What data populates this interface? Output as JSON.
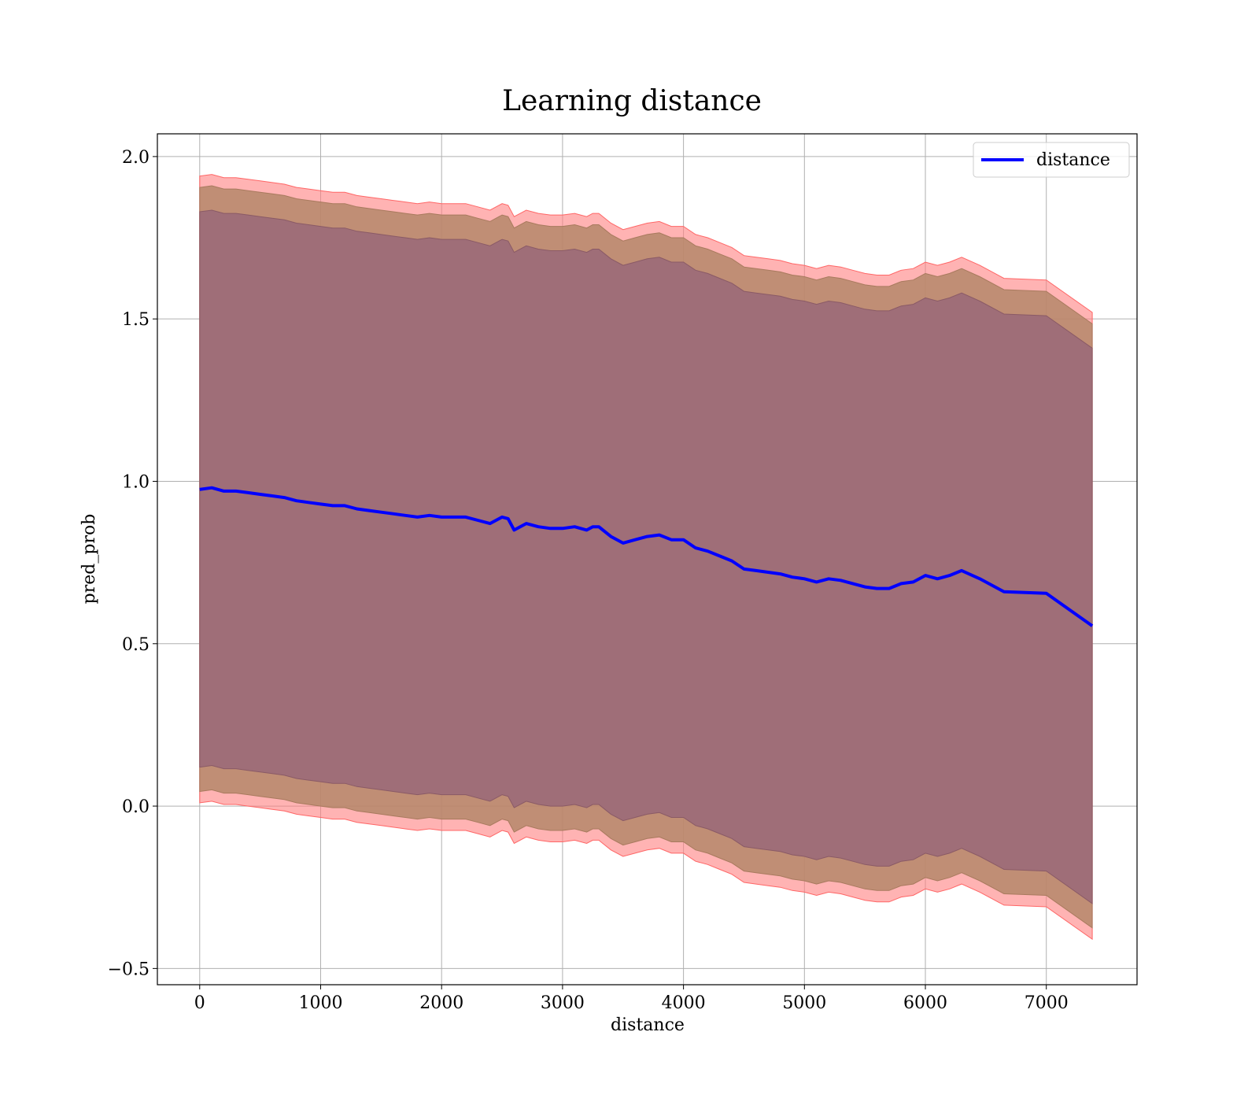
{
  "chart_data": {
    "type": "line",
    "title": "Learning distance",
    "xlabel": "distance",
    "ylabel": "pred_prob",
    "xlim": [
      -350,
      7750
    ],
    "ylim": [
      -0.55,
      2.07
    ],
    "x_ticks": [
      0,
      1000,
      2000,
      3000,
      4000,
      5000,
      6000,
      7000
    ],
    "x_tick_labels": [
      "0",
      "1000",
      "2000",
      "3000",
      "4000",
      "5000",
      "6000",
      "7000"
    ],
    "y_ticks": [
      -0.5,
      0.0,
      0.5,
      1.0,
      1.5,
      2.0
    ],
    "y_tick_labels": [
      "−0.5",
      "0.0",
      "0.5",
      "1.0",
      "1.5",
      "2.0"
    ],
    "grid": true,
    "legend": {
      "placement": "top-right",
      "entries": [
        "distance"
      ]
    },
    "colors": {
      "line": "#0000ff",
      "band_outer": "#ff8080",
      "band_middle": "#b5876a",
      "band_inner": "#9f6e78"
    },
    "series": [
      {
        "name": "distance",
        "x": [
          0,
          100,
          200,
          300,
          400,
          500,
          600,
          700,
          800,
          900,
          1000,
          1100,
          1200,
          1300,
          1400,
          1500,
          1600,
          1700,
          1800,
          1900,
          2000,
          2100,
          2200,
          2300,
          2400,
          2500,
          2550,
          2600,
          2700,
          2800,
          2900,
          3000,
          3100,
          3200,
          3250,
          3300,
          3400,
          3500,
          3600,
          3700,
          3800,
          3900,
          4000,
          4100,
          4200,
          4300,
          4400,
          4500,
          4600,
          4700,
          4800,
          4900,
          5000,
          5100,
          5200,
          5300,
          5400,
          5500,
          5600,
          5700,
          5800,
          5900,
          6000,
          6100,
          6200,
          6300,
          6450,
          6650,
          7000,
          7380
        ],
        "y": [
          0.975,
          0.98,
          0.97,
          0.97,
          0.965,
          0.96,
          0.955,
          0.95,
          0.94,
          0.935,
          0.93,
          0.925,
          0.925,
          0.915,
          0.91,
          0.905,
          0.9,
          0.895,
          0.89,
          0.895,
          0.89,
          0.89,
          0.89,
          0.88,
          0.87,
          0.89,
          0.885,
          0.85,
          0.87,
          0.86,
          0.855,
          0.855,
          0.86,
          0.85,
          0.86,
          0.86,
          0.83,
          0.81,
          0.82,
          0.83,
          0.835,
          0.82,
          0.82,
          0.795,
          0.785,
          0.77,
          0.755,
          0.73,
          0.725,
          0.72,
          0.715,
          0.705,
          0.7,
          0.69,
          0.7,
          0.695,
          0.685,
          0.675,
          0.67,
          0.67,
          0.685,
          0.69,
          0.71,
          0.7,
          0.71,
          0.725,
          0.7,
          0.66,
          0.655,
          0.555
        ]
      }
    ],
    "bands": [
      {
        "name": "outer",
        "upper_offset": 0.965,
        "lower_offset": 0.965
      },
      {
        "name": "middle",
        "upper_offset": 0.93,
        "lower_offset": 0.93
      },
      {
        "name": "inner",
        "upper_offset": 0.855,
        "lower_offset": 0.855
      }
    ]
  }
}
